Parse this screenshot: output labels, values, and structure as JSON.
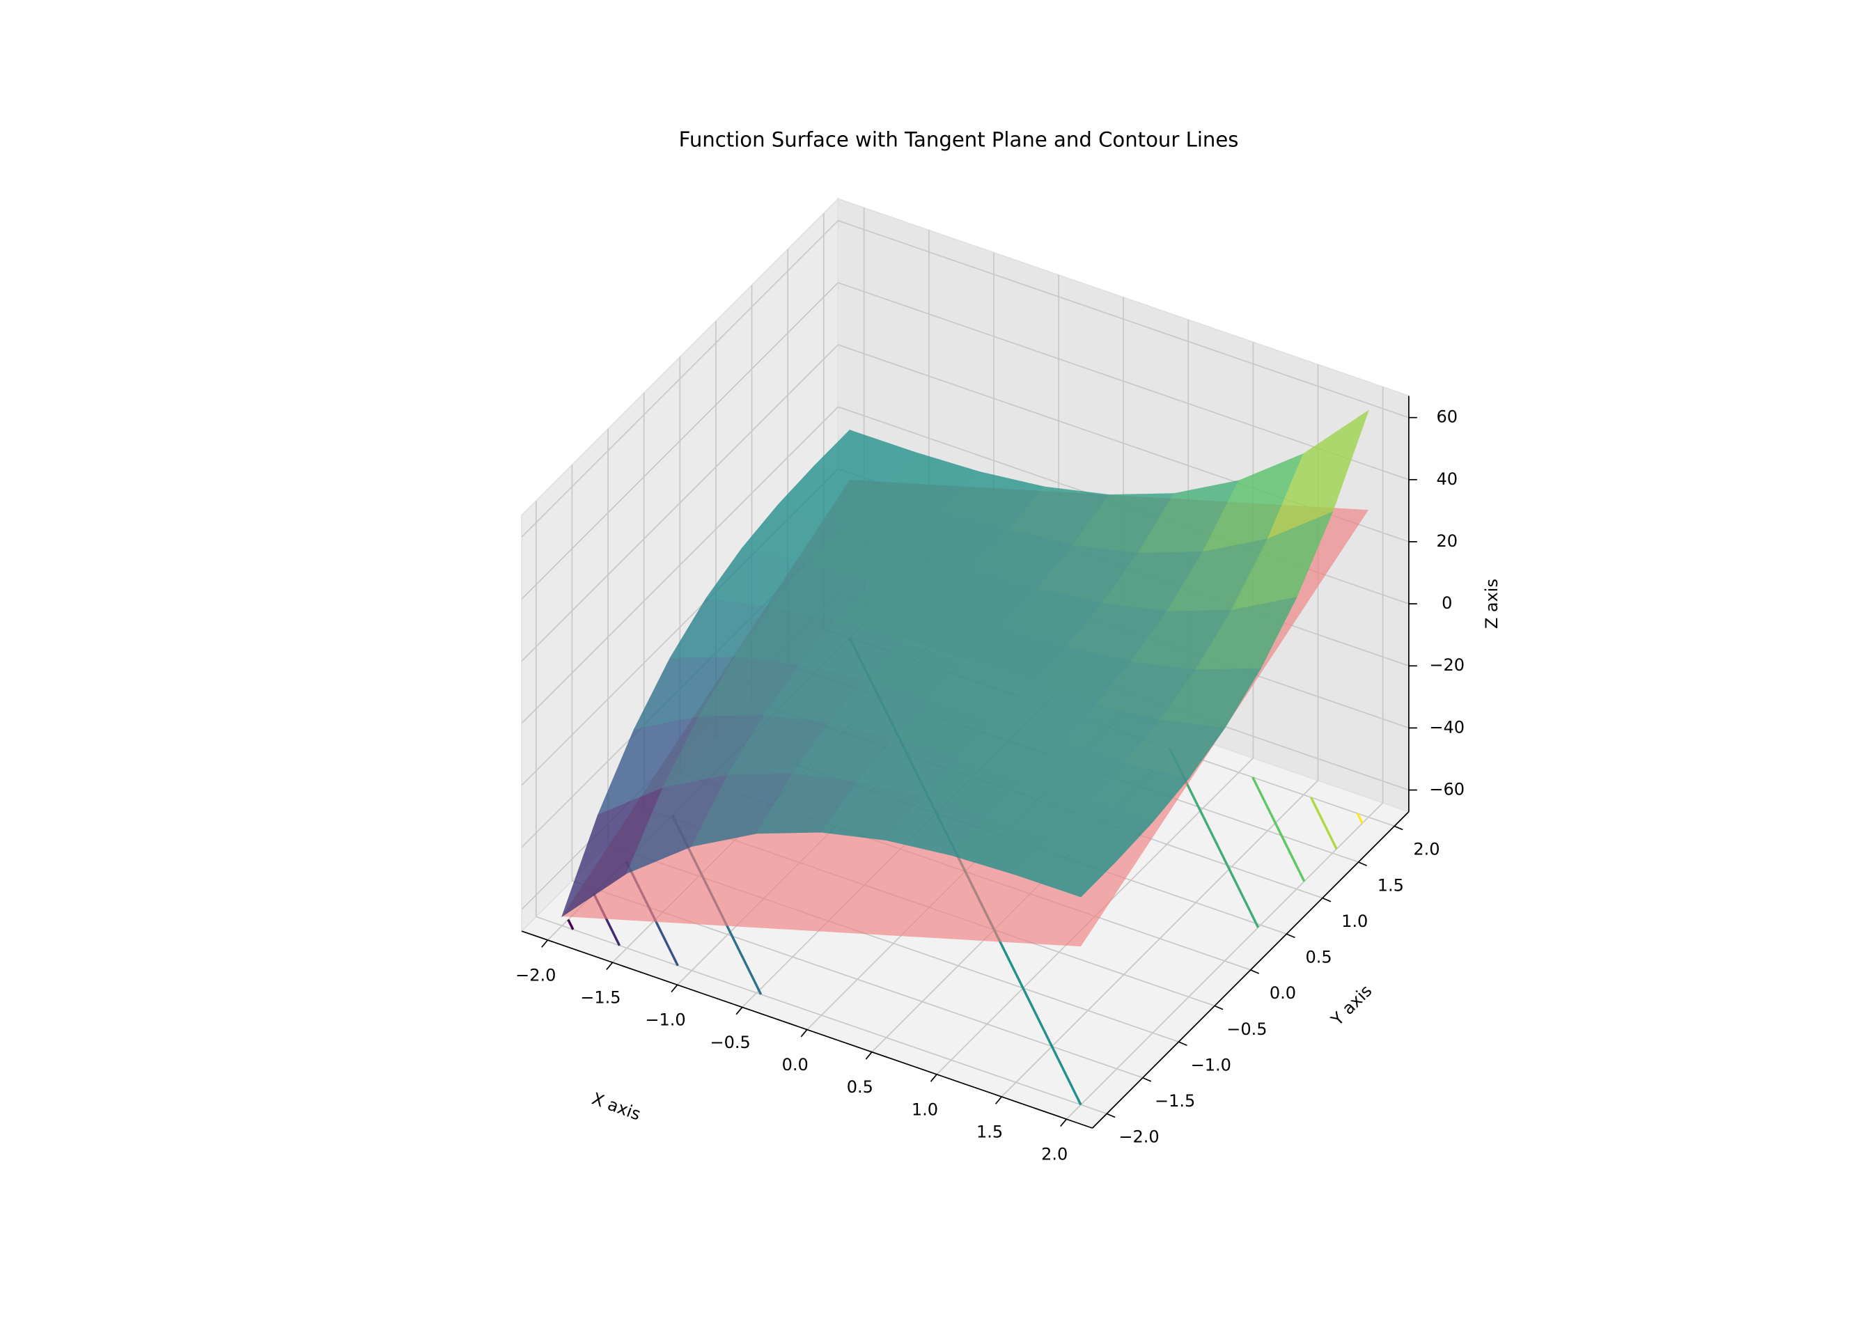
{
  "chart_data": {
    "type": "surface3d",
    "title": "Function Surface with Tangent Plane and Contour Lines",
    "xlabel": "X axis",
    "ylabel": "Y axis",
    "zlabel": "Z axis",
    "x": [
      -2,
      -1.5,
      -1,
      -0.5,
      0,
      0.5,
      1,
      1.5,
      2
    ],
    "y": [
      -2,
      -1.5,
      -1,
      -0.5,
      0,
      0.5,
      1,
      1.5,
      2
    ],
    "z": [
      [
        -64,
        -42.875,
        -27,
        -15.625,
        -8,
        -3.375,
        -1,
        -0.125,
        0
      ],
      [
        -42.875,
        -27,
        -15.625,
        -8,
        -3.375,
        -1,
        -0.125,
        0,
        0.125
      ],
      [
        -27,
        -15.625,
        -8,
        -3.375,
        -1,
        -0.125,
        0,
        0.125,
        1
      ],
      [
        -15.625,
        -8,
        -3.375,
        -1,
        -0.125,
        0,
        0.125,
        1,
        3.375
      ],
      [
        -8,
        -3.375,
        -1,
        -0.125,
        0,
        0.125,
        1,
        3.375,
        8
      ],
      [
        -3.375,
        -1,
        -0.125,
        0,
        0.125,
        1,
        3.375,
        8,
        15.625
      ],
      [
        -1,
        -0.125,
        0,
        0.125,
        1,
        3.375,
        8,
        15.625,
        27
      ],
      [
        -0.125,
        0,
        0.125,
        1,
        3.375,
        8,
        15.625,
        27,
        42.875
      ],
      [
        0,
        0.125,
        1,
        3.375,
        8,
        15.625,
        27,
        42.875,
        64
      ]
    ],
    "colormap": "viridis",
    "plane_x": [
      -2,
      2
    ],
    "plane_y": [
      -2,
      2
    ],
    "plane_z": [
      [
        -64,
        -16
      ],
      [
        -16,
        32
      ]
    ],
    "plane_color": "#f08080",
    "contour_levels": [
      -60,
      -45,
      -30,
      -15,
      0,
      15,
      30,
      45,
      60
    ],
    "xlim": [
      -2.2,
      2.2
    ],
    "ylim": [
      -2.2,
      2.2
    ],
    "zlim": [
      -67,
      67
    ],
    "xticks": [
      {
        "value": -2,
        "label": "−2.0"
      },
      {
        "value": -1.5,
        "label": "−1.5"
      },
      {
        "value": -1,
        "label": "−1.0"
      },
      {
        "value": -0.5,
        "label": "−0.5"
      },
      {
        "value": 0,
        "label": "0.0"
      },
      0.5,
      {
        "value": 1,
        "label": "1.0"
      },
      1.5,
      {
        "value": 2,
        "label": "2.0"
      }
    ],
    "yticks": [
      {
        "value": -2,
        "label": "−2.0"
      },
      {
        "value": -1.5,
        "label": "−1.5"
      },
      {
        "value": -1,
        "label": "−1.0"
      },
      {
        "value": -0.5,
        "label": "−0.5"
      },
      {
        "value": 0,
        "label": "0.0"
      },
      0.5,
      {
        "value": 1,
        "label": "1.0"
      },
      1.5,
      {
        "value": 2,
        "label": "2.0"
      }
    ],
    "zticks": [
      {
        "value": -60,
        "label": "−60"
      },
      {
        "value": -40,
        "label": "−40"
      },
      {
        "value": -20,
        "label": "−20"
      },
      0,
      20,
      40,
      60
    ],
    "grid": true
  }
}
